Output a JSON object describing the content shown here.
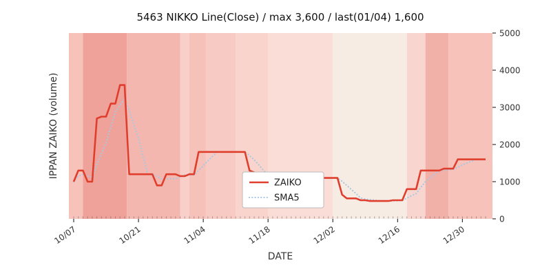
{
  "title": "5463 NIKKO Line(Close) / max 3,600 / last(01/04) 1,600",
  "chart_data": {
    "type": "line",
    "title": "5463 NIKKO Line(Close) / max 3,600 / last(01/04) 1,600",
    "xlabel": "DATE",
    "ylabel": "IPPAN ZAIKO (volume)",
    "ylim": [
      0,
      5000
    ],
    "yticks": [
      0,
      1000,
      2000,
      3000,
      4000,
      5000
    ],
    "x_count": 90,
    "xticks": [
      {
        "i": 0,
        "label": "10/07"
      },
      {
        "i": 14,
        "label": "10/21"
      },
      {
        "i": 28,
        "label": "11/04"
      },
      {
        "i": 42,
        "label": "11/18"
      },
      {
        "i": 56,
        "label": "12/02"
      },
      {
        "i": 70,
        "label": "12/16"
      },
      {
        "i": 84,
        "label": "12/30"
      }
    ],
    "series": [
      {
        "name": "ZAIKO",
        "color": "#df3e2d",
        "style": "solid",
        "values": [
          1000,
          1300,
          1300,
          1000,
          1000,
          2700,
          2750,
          2750,
          3100,
          3100,
          3600,
          3600,
          1200,
          1200,
          1200,
          1200,
          1200,
          1200,
          900,
          900,
          1200,
          1200,
          1200,
          1150,
          1150,
          1200,
          1200,
          1800,
          1800,
          1800,
          1800,
          1800,
          1800,
          1800,
          1800,
          1800,
          1800,
          1800,
          1300,
          1250,
          1100,
          1100,
          1100,
          1100,
          1100,
          1100,
          1100,
          1100,
          1100,
          1100,
          1100,
          1100,
          1100,
          1100,
          1100,
          1100,
          1100,
          1100,
          650,
          550,
          550,
          550,
          500,
          500,
          480,
          480,
          480,
          480,
          480,
          500,
          500,
          500,
          800,
          800,
          800,
          1300,
          1300,
          1300,
          1300,
          1300,
          1350,
          1350,
          1350,
          1600,
          1600,
          1600,
          1600,
          1600,
          1600,
          1600
        ]
      },
      {
        "name": "SMA5",
        "color": "#aac7e2",
        "style": "dotted",
        "window": 5,
        "derived_from": "ZAIKO"
      }
    ],
    "legend": [
      "ZAIKO",
      "SMA5"
    ],
    "legend_position": "lower-center-left",
    "grid": false,
    "background_bands": [
      {
        "from": -1.2,
        "to": 2,
        "color": "#f7c2ba"
      },
      {
        "from": 2,
        "to": 11.5,
        "color": "#efa29a"
      },
      {
        "from": 11.5,
        "to": 23,
        "color": "#f4b7af"
      },
      {
        "from": 23,
        "to": 25,
        "color": "#f8d0c9"
      },
      {
        "from": 25,
        "to": 28.5,
        "color": "#f5c1b9"
      },
      {
        "from": 28.5,
        "to": 35,
        "color": "#f7cbc4"
      },
      {
        "from": 35,
        "to": 42,
        "color": "#f8d4cd"
      },
      {
        "from": 42,
        "to": 56,
        "color": "#f9ddd6"
      },
      {
        "from": 56,
        "to": 72,
        "color": "#f6ece4"
      },
      {
        "from": 72,
        "to": 76,
        "color": "#f8d6cf"
      },
      {
        "from": 76,
        "to": 81,
        "color": "#f2b1a8"
      },
      {
        "from": 81,
        "to": 91,
        "color": "#f6c2ba"
      }
    ],
    "max_value_note": "max 3,600",
    "last_value_note": "last(01/04) 1,600"
  }
}
